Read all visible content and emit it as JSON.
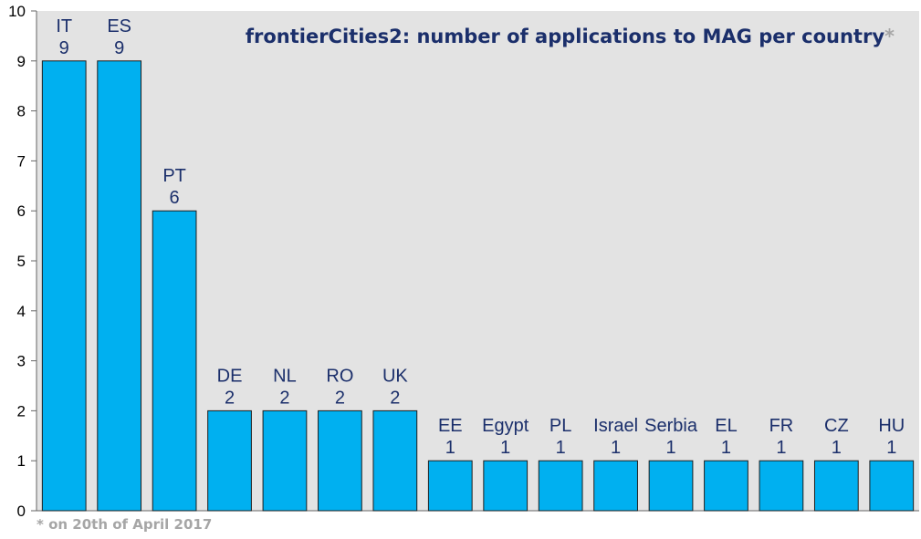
{
  "chart_data": {
    "type": "bar",
    "title": "frontierCities2: number of applications to MAG per country",
    "title_marker": "*",
    "footnote": "* on 20th of April 2017",
    "categories": [
      "IT",
      "ES",
      "PT",
      "DE",
      "NL",
      "RO",
      "UK",
      "EE",
      "Egypt",
      "PL",
      "Israel",
      "Serbia",
      "EL",
      "FR",
      "CZ",
      "HU"
    ],
    "values": [
      9,
      9,
      6,
      2,
      2,
      2,
      2,
      1,
      1,
      1,
      1,
      1,
      1,
      1,
      1,
      1
    ],
    "ylim": [
      0,
      10
    ],
    "yticks": [
      0,
      1,
      2,
      3,
      4,
      5,
      6,
      7,
      8,
      9,
      10
    ],
    "grid": false,
    "legend": "none"
  },
  "colors": {
    "bar": "#00b0f0",
    "bar_edge": "#1f1f1f",
    "plot_bg": "#e3e3e3",
    "label": "#1b2f6b",
    "axis": "#666666",
    "footnote": "#a6a6a6"
  }
}
